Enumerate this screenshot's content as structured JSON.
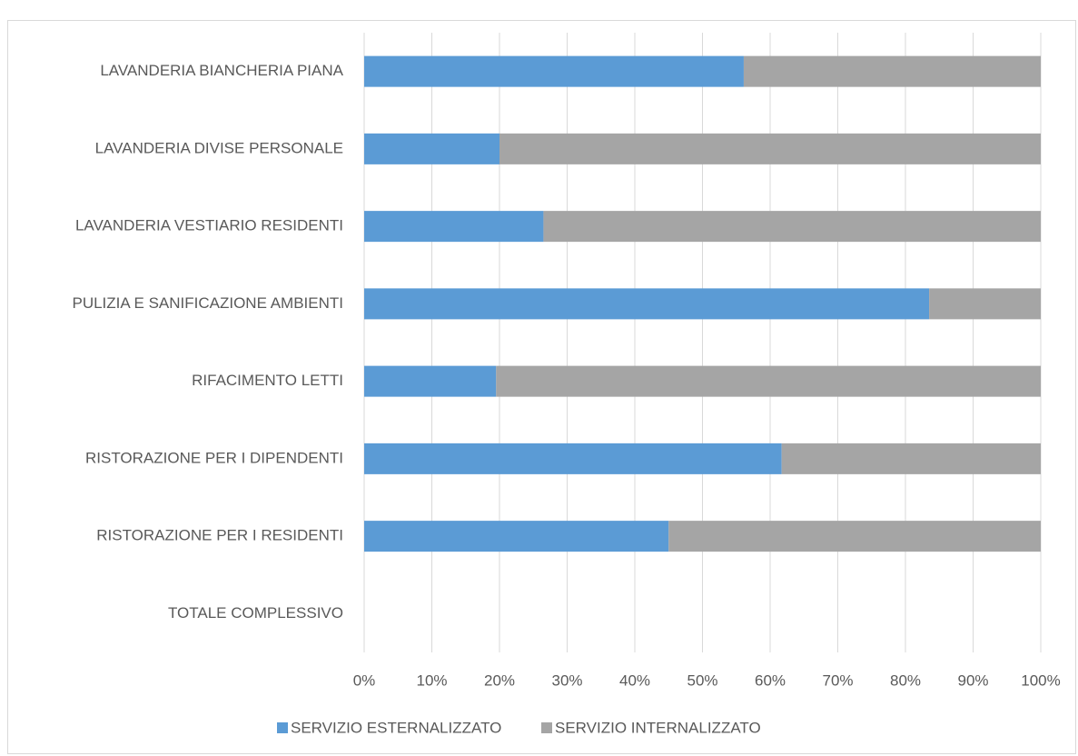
{
  "chart_data": {
    "type": "stacked_barh",
    "categories": [
      "LAVANDERIA BIANCHERIA PIANA",
      "LAVANDERIA DIVISE PERSONALE",
      "LAVANDERIA VESTIARIO RESIDENTI",
      "PULIZIA E SANIFICAZIONE AMBIENTI",
      "RIFACIMENTO LETTI",
      "RISTORAZIONE PER I DIPENDENTI",
      "RISTORAZIONE PER I RESIDENTI",
      "TOTALE COMPLESSIVO"
    ],
    "series": [
      {
        "name": "SERVIZIO ESTERNALIZZATO",
        "color": "#5b9bd5",
        "values": [
          56.1,
          20,
          26.5,
          83.5,
          19.5,
          61.7,
          45,
          null
        ]
      },
      {
        "name": "SERVIZIO INTERNALIZZATO",
        "color": "#a5a5a5",
        "values": [
          43.9,
          80,
          73.5,
          16.5,
          80.5,
          38.3,
          55,
          null
        ]
      }
    ],
    "xlim": [
      0,
      100
    ],
    "xticks": [
      {
        "value": 0,
        "label": "0%"
      },
      {
        "value": 10,
        "label": "10%"
      },
      {
        "value": 20,
        "label": "20%"
      },
      {
        "value": 30,
        "label": "30%"
      },
      {
        "value": 40,
        "label": "40%"
      },
      {
        "value": 50,
        "label": "50%"
      },
      {
        "value": 60,
        "label": "60%"
      },
      {
        "value": 70,
        "label": "70%"
      },
      {
        "value": 80,
        "label": "80%"
      },
      {
        "value": 90,
        "label": "90%"
      },
      {
        "value": 100,
        "label": "100%"
      }
    ],
    "grid": true,
    "legend": "bottom"
  }
}
